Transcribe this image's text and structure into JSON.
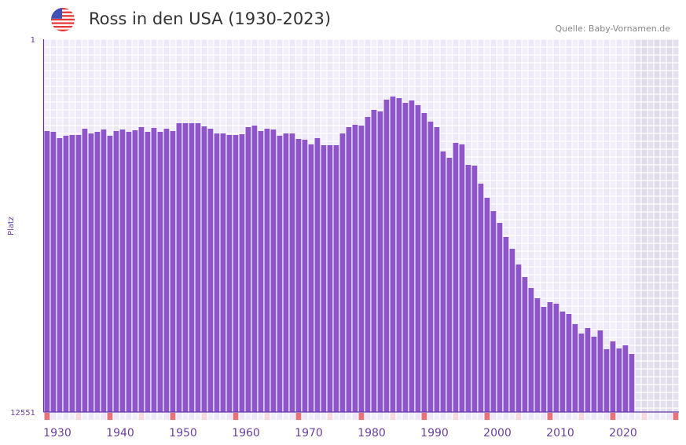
{
  "header": {
    "title": "Ross in den USA (1930-2023)",
    "source": "Quelle: Baby-Vornamen.de",
    "flag_icon": "us-flag-icon"
  },
  "colors": {
    "bar": "#8e55c8",
    "axis": "#5e35a0",
    "label": "#6a3fa0",
    "decade_marker": "#e8727a",
    "half_decade_marker": "#f5d8e0",
    "future_band": "#e2dcec"
  },
  "chart_data": {
    "type": "bar",
    "title": "Ross in den USA (1930-2023)",
    "xlabel": "",
    "ylabel": "Platz",
    "ylim": [
      1,
      12551
    ],
    "y_inverted": true,
    "y_ticks": [
      "1",
      "12551"
    ],
    "x_range": [
      1930,
      2030
    ],
    "x_ticks": [
      "1930",
      "1940",
      "1950",
      "1960",
      "1970",
      "1980",
      "1990",
      "2000",
      "2010",
      "2020"
    ],
    "grid": true,
    "legend": "none",
    "x": [
      1930,
      1931,
      1932,
      1933,
      1934,
      1935,
      1936,
      1937,
      1938,
      1939,
      1940,
      1941,
      1942,
      1943,
      1944,
      1945,
      1946,
      1947,
      1948,
      1949,
      1950,
      1951,
      1952,
      1953,
      1954,
      1955,
      1956,
      1957,
      1958,
      1959,
      1960,
      1961,
      1962,
      1963,
      1964,
      1965,
      1966,
      1967,
      1968,
      1969,
      1970,
      1971,
      1972,
      1973,
      1974,
      1975,
      1976,
      1977,
      1978,
      1979,
      1980,
      1981,
      1982,
      1983,
      1984,
      1985,
      1986,
      1987,
      1988,
      1989,
      1990,
      1991,
      1992,
      1993,
      1994,
      1995,
      1996,
      1997,
      1998,
      1999,
      2000,
      2001,
      2002,
      2003,
      2004,
      2005,
      2006,
      2007,
      2008,
      2009,
      2010,
      2011,
      2012,
      2013,
      2014,
      2015,
      2016,
      2017,
      2018,
      2019,
      2020,
      2021,
      2022,
      2023
    ],
    "values": [
      3092,
      3119,
      3330,
      3251,
      3224,
      3224,
      3013,
      3172,
      3119,
      3039,
      3251,
      3092,
      3039,
      3119,
      3066,
      2960,
      3119,
      2987,
      3119,
      3013,
      3092,
      2828,
      2828,
      2828,
      2828,
      2934,
      3013,
      3172,
      3172,
      3224,
      3224,
      3198,
      2960,
      2907,
      3092,
      3013,
      3039,
      3251,
      3172,
      3172,
      3356,
      3383,
      3541,
      3330,
      3568,
      3568,
      3568,
      3172,
      2960,
      2881,
      2907,
      2617,
      2379,
      2432,
      2035,
      1930,
      1983,
      2141,
      2062,
      2220,
      2485,
      2775,
      2960,
      3779,
      3991,
      3489,
      3541,
      4228,
      4255,
      4862,
      5338,
      5787,
      6184,
      6659,
      7055,
      7584,
      8007,
      8377,
      8720,
      9011,
      8852,
      8905,
      9169,
      9248,
      9592,
      9909,
      9724,
      10015,
      9803,
      10437,
      10173,
      10411,
      10305,
      10596
    ]
  }
}
